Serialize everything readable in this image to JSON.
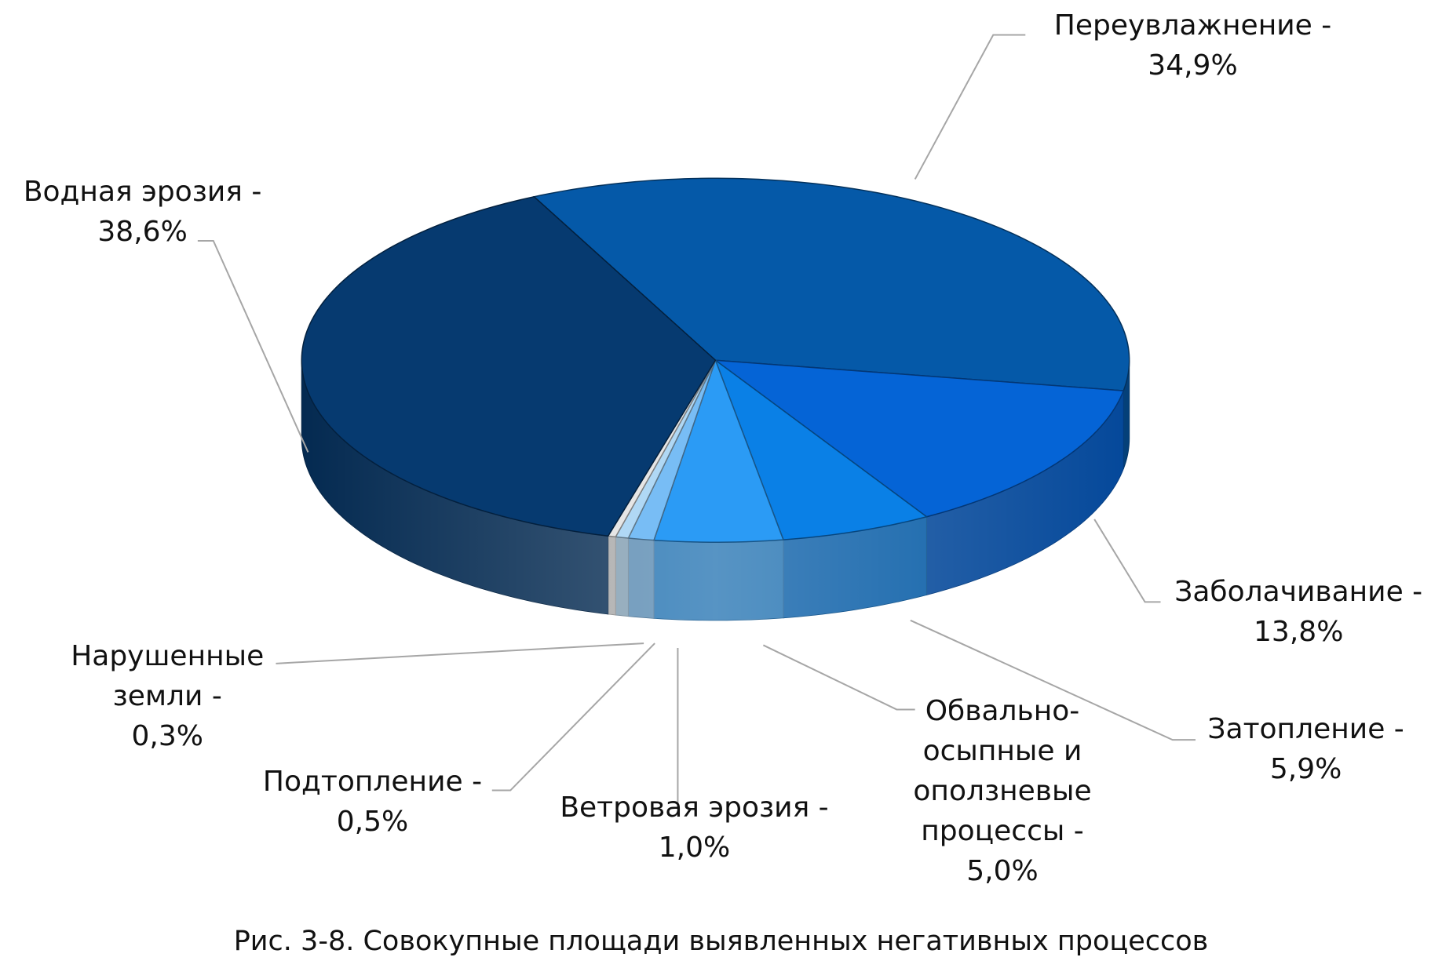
{
  "chart_data": {
    "type": "pie3d",
    "title": "Рис. 3-8. Совокупные площади выявленных негативных процессов",
    "categories": [
      "Переувлажнение -",
      "Заболачивание -",
      "Затопление -",
      "Обвально-осыпные и оползневые процессы -",
      "Ветровая эрозия -",
      "Подтопление -",
      "Нарушенные земли -",
      "Водная эрозия -"
    ],
    "values": [
      34.9,
      13.8,
      5.9,
      5.0,
      1.0,
      0.5,
      0.3,
      38.6
    ],
    "value_labels": [
      "34,9%",
      "13,8%",
      "5,9%",
      "5,0%",
      "1,0%",
      "0,5%",
      "0,3%",
      "38,6%"
    ],
    "colors": [
      "#0559a8",
      "#0564d6",
      "#0a80e6",
      "#2b9bf5",
      "#78bdf5",
      "#b0d8f5",
      "#e6e6e6",
      "#063a70"
    ]
  }
}
